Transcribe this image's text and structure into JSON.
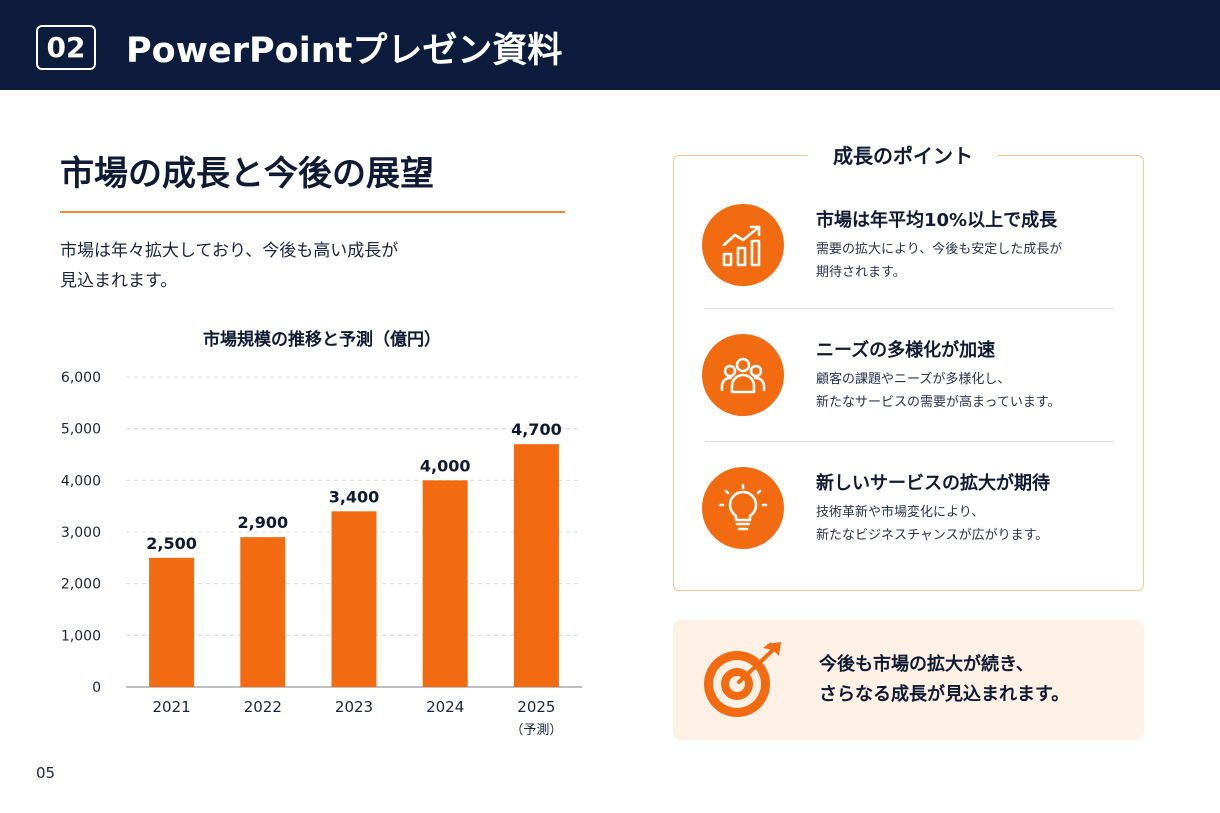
{
  "header": {
    "section_number": "02",
    "title": "PowerPointプレゼン資料"
  },
  "main": {
    "title": "市場の成長と今後の展望",
    "lead_line1": "市場は年々拡大しており、今後も高い成長が",
    "lead_line2": "見込まれます。"
  },
  "chart_data": {
    "type": "bar",
    "title": "市場規模の推移と予測（億円）",
    "categories": [
      "2021",
      "2022",
      "2023",
      "2024",
      "2025"
    ],
    "category_sublabels": [
      "",
      "",
      "",
      "",
      "（予測）"
    ],
    "values": [
      2500,
      2900,
      3400,
      4000,
      4700
    ],
    "data_labels": [
      "2,500",
      "2,900",
      "3,400",
      "4,000",
      "4,700"
    ],
    "yticks": [
      "0",
      "1,000",
      "2,000",
      "3,000",
      "4,000",
      "5,000",
      "6,000"
    ],
    "ylim": [
      0,
      6000
    ],
    "grid": true,
    "bar_color": "#f26b10",
    "xlabel": "",
    "ylabel": ""
  },
  "points": {
    "heading": "成長のポイント",
    "items": [
      {
        "icon": "growth-chart-icon",
        "title": "市場は年平均10%以上で成長",
        "desc_line1": "需要の拡大により、今後も安定した成長が",
        "desc_line2": "期待されます。"
      },
      {
        "icon": "people-group-icon",
        "title": "ニーズの多様化が加速",
        "desc_line1": "顧客の課題やニーズが多様化し、",
        "desc_line2": "新たなサービスの需要が高まっています。"
      },
      {
        "icon": "lightbulb-icon",
        "title": "新しいサービスの拡大が期待",
        "desc_line1": "技術革新や市場変化により、",
        "desc_line2": "新たなビジネスチャンスが広がります。"
      }
    ]
  },
  "conclusion": {
    "icon": "target-arrow-icon",
    "line1": "今後も市場の拡大が続き、",
    "line2": "さらなる成長が見込まれます。"
  },
  "footer": {
    "page_number": "05"
  },
  "colors": {
    "header_bg": "#0d1b3d",
    "accent": "#f26b10",
    "accent_light": "#fdf0e4"
  }
}
